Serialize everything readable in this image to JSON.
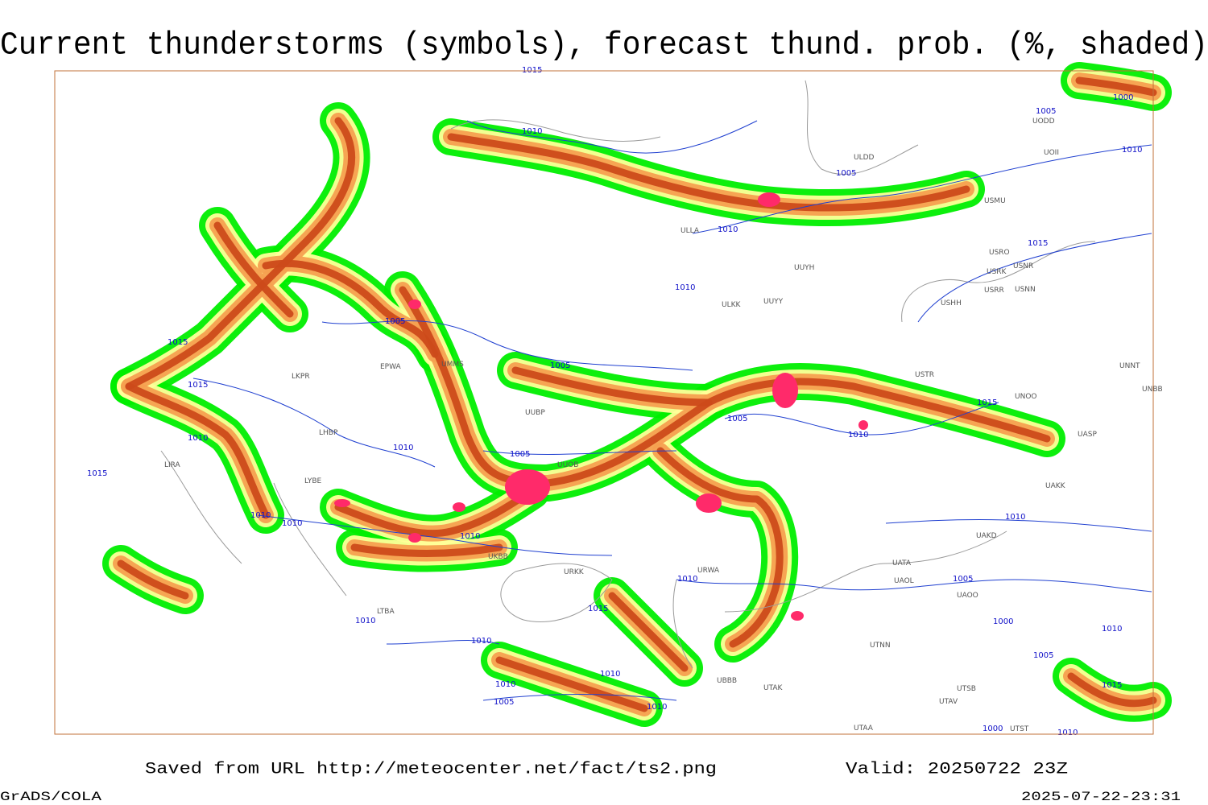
{
  "title": "Current thunderstorms (symbols), forecast thund. prob. (%, shaded)",
  "stations": [
    "ULDD",
    "UOII",
    "UODD",
    "USMU",
    "ULLA",
    "UUYH",
    "USRO",
    "USNR",
    "USRK",
    "USRR",
    "USNN",
    "USHH",
    "ULKK",
    "UUYY",
    "USTR",
    "UNNT",
    "UNBB",
    "UNOO",
    "UASP",
    "UAKK",
    "UAKD",
    "UATA",
    "UAOL",
    "UAOO",
    "UTNN",
    "UTAK",
    "UBBB",
    "UTSB",
    "UTAV",
    "UTAA",
    "UTST",
    "URKK",
    "URWA",
    "UUOB",
    "UUBP",
    "EPWA",
    "LKPR",
    "LHBP",
    "LIRA",
    "LYBE",
    "LTBA",
    "UKBB",
    "UMMS"
  ],
  "isobar_labels": [
    1015,
    1010,
    1005,
    1000,
    1010,
    1005,
    1010,
    1015,
    1010,
    1005,
    1015,
    1015,
    1005,
    1005,
    1015,
    1010,
    1005,
    1010,
    1010,
    1015,
    1010,
    1010,
    1010,
    1010,
    1015,
    1005,
    1010,
    1000,
    1010,
    1005,
    1015,
    1010,
    1010,
    1010,
    1010,
    1005,
    1010,
    1000,
    1010
  ],
  "footer": {
    "source": "Saved from URL http://meteocenter.net/fact/ts2.png",
    "valid": "Valid: 20250722 23Z",
    "software": "GrADS/COLA",
    "timestamp": "2025-07-22-23:31"
  }
}
